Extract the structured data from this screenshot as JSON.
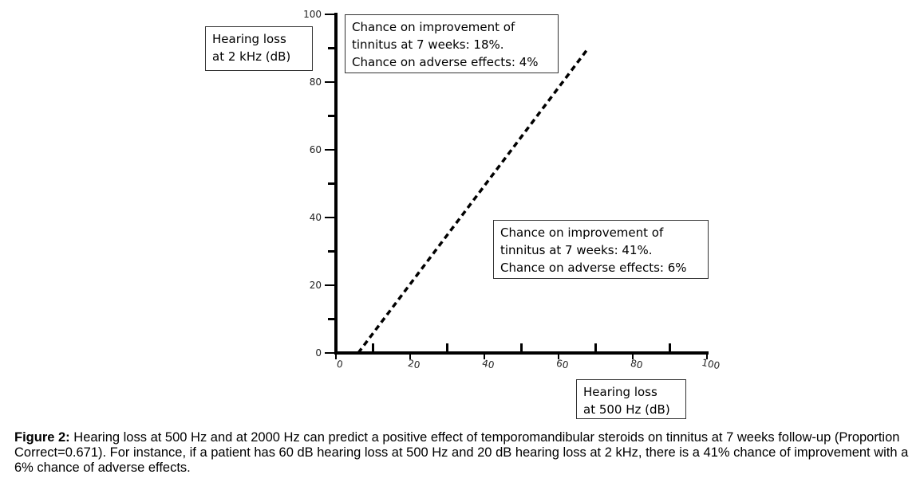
{
  "chart_data": {
    "type": "line",
    "xlabel_lines": [
      "Hearing loss",
      "at 500 Hz (dB)"
    ],
    "ylabel_lines": [
      "Hearing loss",
      "at 2 kHz (dB)"
    ],
    "xlim": [
      0,
      100
    ],
    "ylim": [
      0,
      100
    ],
    "x_ticks": [
      0,
      20,
      40,
      60,
      80,
      100
    ],
    "y_ticks": [
      0,
      20,
      40,
      60,
      80,
      100
    ],
    "x_minor_ticks": [
      10,
      30,
      50,
      70,
      90
    ],
    "y_minor_ticks": [
      10,
      30,
      50,
      70,
      90
    ],
    "series": [
      {
        "style": "dashed",
        "x": [
          6,
          68
        ],
        "y": [
          0,
          90
        ]
      }
    ],
    "annotations": [
      {
        "id": "top",
        "lines": [
          "Chance on improvement of",
          "tinnitus at 7 weeks: 18%.",
          "Chance on adverse effects: 4%"
        ]
      },
      {
        "id": "bottom",
        "lines": [
          "Chance on improvement of",
          "tinnitus at 7 weeks: 41%.",
          "Chance on adverse effects: 6%"
        ]
      }
    ],
    "grid": false
  },
  "caption": {
    "label": "Figure 2:",
    "text": " Hearing loss at 500 Hz and at 2000 Hz can predict a positive effect of temporomandibular steroids on tinnitus at 7 weeks follow-up (Proportion Correct=0.671). For instance, if a patient has 60 dB hearing loss at 500 Hz and 20 dB hearing loss at 2 kHz, there is a 41% chance of improvement with a 6% chance of adverse effects."
  }
}
